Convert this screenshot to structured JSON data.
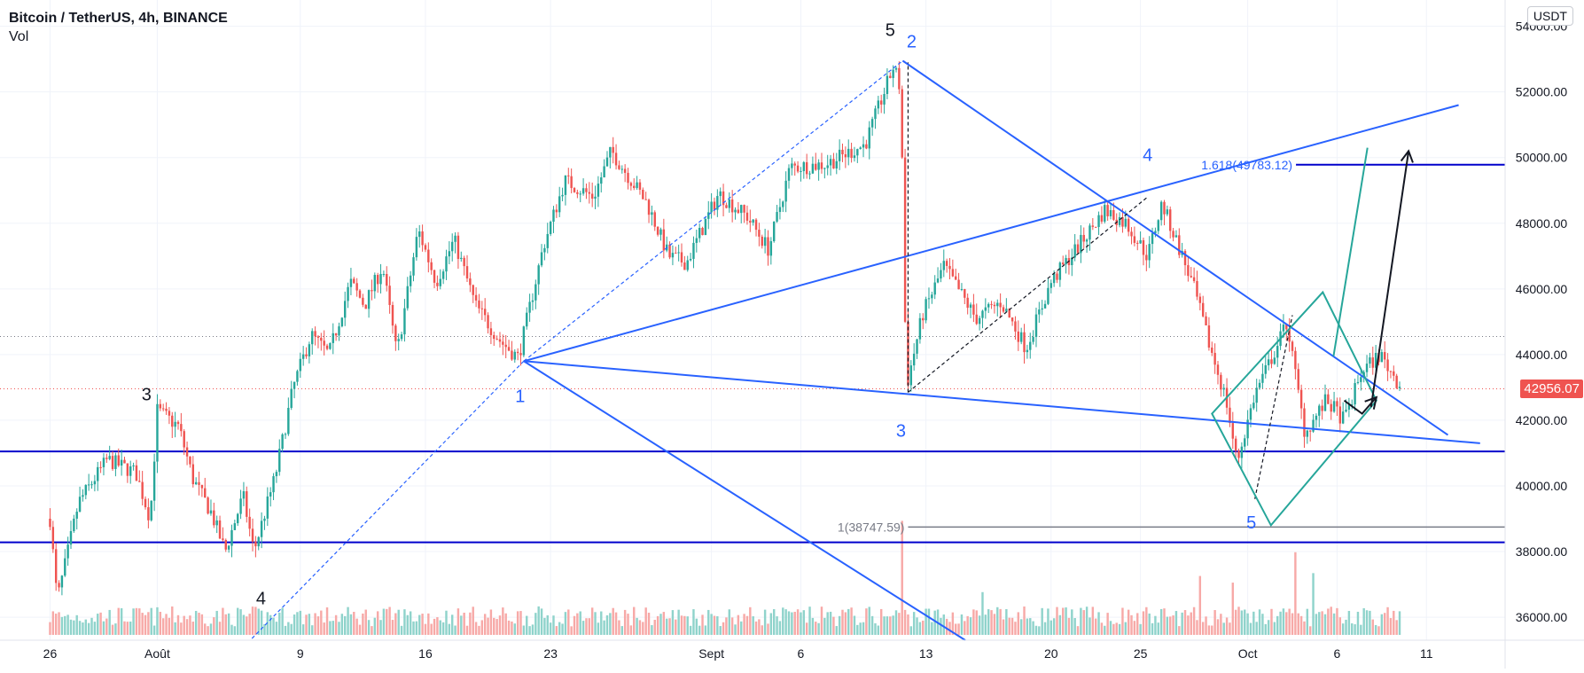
{
  "header": {
    "title": "Bitcoin / TetherUS, 4h, BINANCE",
    "indicator": "Vol",
    "currency": "USDT"
  },
  "colors": {
    "up": "#26a69a",
    "down": "#ef5350",
    "up_volume": "#8fd3cb",
    "down_volume": "#f7a9a7",
    "drawing_blue": "#2962ff",
    "horizontal_navy": "#0000cc",
    "teal": "#26a69a",
    "fib_line": "#787b86",
    "grid": "#f0f3fa",
    "axis_text": "#131722"
  },
  "chart_data": {
    "type": "candlestick",
    "symbol": "Bitcoin / TetherUS",
    "interval": "4h",
    "exchange": "BINANCE",
    "y_axis": {
      "ticks": [
        "54000.00",
        "52000.00",
        "50000.00",
        "48000.00",
        "46000.00",
        "44000.00",
        "42000.00",
        "40000.00",
        "38000.00",
        "36000.00"
      ],
      "ylim": [
        35300,
        54800
      ]
    },
    "x_axis": {
      "ticks": [
        "26",
        "Août",
        "9",
        "16",
        "23",
        "Sept",
        "6",
        "13",
        "20",
        "25",
        "Oct",
        "6",
        "11"
      ],
      "tick_days": [
        -6,
        0,
        8,
        15,
        22,
        31,
        36,
        43,
        50,
        55,
        61,
        66,
        71
      ],
      "xlim": [
        -8.8,
        75.4
      ]
    },
    "last_price": "42956.07",
    "anchors": [
      {
        "day": -6,
        "price": 39000
      },
      {
        "day": -5.6,
        "price": 36500
      },
      {
        "day": -4.4,
        "price": 39500
      },
      {
        "day": -2.8,
        "price": 40800
      },
      {
        "day": -1.2,
        "price": 40400
      },
      {
        "day": -0.4,
        "price": 39000
      },
      {
        "day": 0,
        "price": 42300
      },
      {
        "day": 1.2,
        "price": 41800
      },
      {
        "day": 2,
        "price": 40200
      },
      {
        "day": 3,
        "price": 39200
      },
      {
        "day": 3.8,
        "price": 38000
      },
      {
        "day": 4.8,
        "price": 39700
      },
      {
        "day": 5.4,
        "price": 38000
      },
      {
        "day": 6.6,
        "price": 40300
      },
      {
        "day": 7.6,
        "price": 43000
      },
      {
        "day": 8.6,
        "price": 44600
      },
      {
        "day": 9.6,
        "price": 44000
      },
      {
        "day": 10.8,
        "price": 46200
      },
      {
        "day": 11.6,
        "price": 45500
      },
      {
        "day": 12.6,
        "price": 46700
      },
      {
        "day": 13.4,
        "price": 44000
      },
      {
        "day": 14.6,
        "price": 47800
      },
      {
        "day": 15.6,
        "price": 46200
      },
      {
        "day": 16.6,
        "price": 47500
      },
      {
        "day": 17.8,
        "price": 45500
      },
      {
        "day": 19.2,
        "price": 44400
      },
      {
        "day": 20.2,
        "price": 43900
      },
      {
        "day": 21.6,
        "price": 47300
      },
      {
        "day": 22.8,
        "price": 49300
      },
      {
        "day": 24.4,
        "price": 48800
      },
      {
        "day": 25.4,
        "price": 50200
      },
      {
        "day": 27.4,
        "price": 48600
      },
      {
        "day": 28.6,
        "price": 47000
      },
      {
        "day": 29.6,
        "price": 46800
      },
      {
        "day": 31.4,
        "price": 48900
      },
      {
        "day": 33,
        "price": 48200
      },
      {
        "day": 34.2,
        "price": 47200
      },
      {
        "day": 35.4,
        "price": 49700
      },
      {
        "day": 37.4,
        "price": 49800
      },
      {
        "day": 39.6,
        "price": 50400
      },
      {
        "day": 41.2,
        "price": 52800
      },
      {
        "day": 41.6,
        "price": 52000
      },
      {
        "day": 41.9,
        "price": 43000
      },
      {
        "day": 42.8,
        "price": 45200
      },
      {
        "day": 44,
        "price": 46700
      },
      {
        "day": 45.8,
        "price": 45100
      },
      {
        "day": 47.2,
        "price": 45600
      },
      {
        "day": 48.6,
        "price": 44200
      },
      {
        "day": 50,
        "price": 46200
      },
      {
        "day": 51.8,
        "price": 47500
      },
      {
        "day": 53,
        "price": 48400
      },
      {
        "day": 54.2,
        "price": 48000
      },
      {
        "day": 55.4,
        "price": 47000
      },
      {
        "day": 56.2,
        "price": 48600
      },
      {
        "day": 57.2,
        "price": 47200
      },
      {
        "day": 58,
        "price": 46000
      },
      {
        "day": 58.8,
        "price": 44400
      },
      {
        "day": 59.8,
        "price": 42600
      },
      {
        "day": 60.4,
        "price": 40700
      },
      {
        "day": 61.4,
        "price": 42800
      },
      {
        "day": 62.6,
        "price": 44200
      },
      {
        "day": 63.2,
        "price": 45000
      },
      {
        "day": 63.6,
        "price": 43600
      },
      {
        "day": 64.2,
        "price": 41600
      },
      {
        "day": 65.4,
        "price": 42600
      },
      {
        "day": 66.4,
        "price": 42000
      },
      {
        "day": 67.4,
        "price": 43500
      },
      {
        "day": 68.4,
        "price": 44000
      },
      {
        "day": 69.6,
        "price": 43000
      }
    ],
    "volume_ylim": [
      0,
      14000
    ],
    "volume_spikes": [
      {
        "day": 41.6,
        "volume": 12000
      },
      {
        "day": 46.2,
        "volume": 4500
      },
      {
        "day": 58.4,
        "volume": 6200
      },
      {
        "day": 60.2,
        "volume": 5500
      },
      {
        "day": 63.6,
        "volume": 8700
      },
      {
        "day": 64.6,
        "volume": 6500
      }
    ],
    "horizontal_lines": [
      {
        "price": 41050,
        "color": "#0000cc",
        "style": "solid"
      },
      {
        "price": 38280,
        "color": "#0000cc",
        "style": "solid"
      },
      {
        "price": 44550,
        "color": "#787b86",
        "style": "dotted"
      },
      {
        "price": 42956,
        "color": "#ef5350",
        "style": "dotted"
      }
    ],
    "fib_levels": [
      {
        "label": "1.618(49783.12)",
        "price": 49783,
        "from_day": 63.7,
        "color": "#0000cc",
        "label_color": "#2962ff"
      },
      {
        "label": "1(38747.59)",
        "price": 38748,
        "from_day": 42,
        "color": "#787b86",
        "label_color": "#787b86"
      }
    ],
    "trend_lines": [
      {
        "from": [
          20.5,
          43800
        ],
        "to": [
          41.7,
          52950
        ],
        "color": "#2962ff",
        "style": "dashed"
      },
      {
        "from": [
          20.5,
          43800
        ],
        "to": [
          5.2,
          35300
        ],
        "color": "#2962ff",
        "style": "dashed"
      },
      {
        "from": [
          41.7,
          52950
        ],
        "to": [
          72.2,
          41550
        ],
        "color": "#2962ff",
        "style": "solid"
      },
      {
        "from": [
          20.5,
          43800
        ],
        "to": [
          74,
          41300
        ],
        "color": "#2962ff",
        "style": "solid"
      },
      {
        "from": [
          20.5,
          43800
        ],
        "to": [
          72.8,
          51600
        ],
        "color": "#2962ff",
        "style": "solid"
      },
      {
        "from": [
          20.5,
          43800
        ],
        "to": [
          45.2,
          35300
        ],
        "color": "#2962ff",
        "style": "solid"
      },
      {
        "from": [
          42,
          42850
        ],
        "to": [
          42,
          52900
        ],
        "color": "#131722",
        "style": "dashed"
      },
      {
        "from": [
          42,
          42850
        ],
        "to": [
          55.4,
          48800
        ],
        "color": "#131722",
        "style": "dashed"
      },
      {
        "from": [
          61.4,
          39600
        ],
        "to": [
          63.5,
          45200
        ],
        "color": "#131722",
        "style": "dashed"
      },
      {
        "from": [
          65.8,
          43950
        ],
        "to": [
          67.7,
          50300
        ],
        "color": "#26a69a",
        "style": "solid"
      }
    ],
    "rectangle": {
      "corners": [
        [
          59,
          42200
        ],
        [
          65.2,
          45900
        ],
        [
          68.2,
          42600
        ],
        [
          62.3,
          38800
        ]
      ],
      "color": "#26a69a"
    },
    "arrows": [
      {
        "path": [
          [
            66.4,
            42600
          ],
          [
            67.4,
            42200
          ],
          [
            68.2,
            42700
          ]
        ],
        "color": "#131722",
        "head": false
      },
      {
        "path": [
          [
            67.9,
            42400
          ],
          [
            70,
            50200
          ]
        ],
        "color": "#131722",
        "head": true
      }
    ],
    "annotations": [
      {
        "text": "5",
        "day": 41,
        "price": 53700,
        "color": "#131722"
      },
      {
        "text": "2",
        "day": 42.2,
        "price": 53350,
        "color": "#2962ff"
      },
      {
        "text": "1",
        "day": 20.3,
        "price": 42550,
        "color": "#2962ff"
      },
      {
        "text": "3",
        "day": -0.6,
        "price": 42600,
        "color": "#131722"
      },
      {
        "text": "4",
        "day": 5.8,
        "price": 36400,
        "color": "#131722"
      },
      {
        "text": "3",
        "day": 41.6,
        "price": 41500,
        "color": "#2962ff"
      },
      {
        "text": "4",
        "day": 55.4,
        "price": 49900,
        "color": "#2962ff"
      },
      {
        "text": "5",
        "day": 61.2,
        "price": 38700,
        "color": "#2962ff"
      }
    ]
  }
}
